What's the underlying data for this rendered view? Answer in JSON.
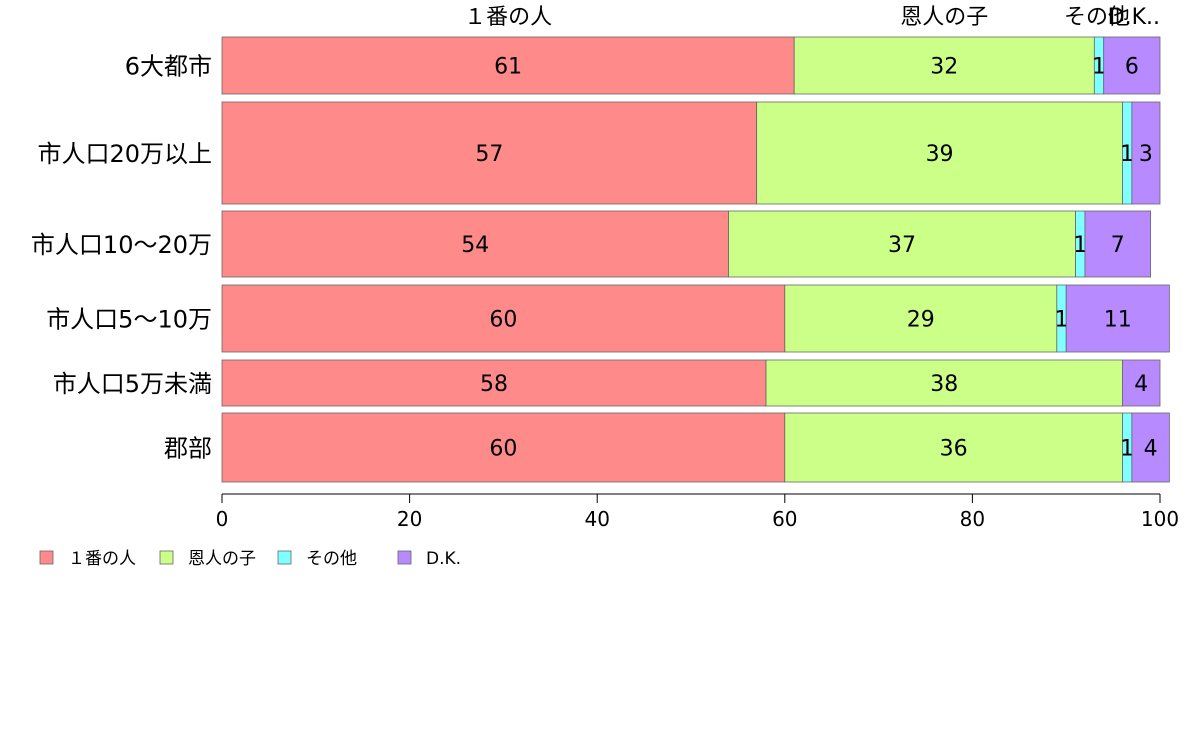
{
  "chart_data": {
    "type": "bar",
    "orientation": "horizontal",
    "stacked": true,
    "categories": [
      "6大都市",
      "市人口20万以上",
      "市人口10〜20万",
      "市人口5〜10万",
      "市人口5万未満",
      "郡部"
    ],
    "series": [
      {
        "name": "１番の人",
        "color": "#FF8A8A",
        "values": [
          61,
          57,
          54,
          60,
          58,
          60
        ]
      },
      {
        "name": "恩人の子",
        "color": "#CCFF88",
        "values": [
          32,
          39,
          37,
          29,
          38,
          36
        ]
      },
      {
        "name": "その他",
        "color": "#7FFFFF",
        "values": [
          1,
          1,
          1,
          1,
          0,
          1
        ]
      },
      {
        "name": "D.K.",
        "color": "#B88AFF",
        "values": [
          6,
          3,
          7,
          11,
          4,
          4
        ]
      }
    ],
    "top_labels": [
      "１番の人",
      "恩人の子",
      "その他",
      "D.K.."
    ],
    "xlim": [
      0,
      100
    ],
    "xticks": [
      0,
      20,
      40,
      60,
      80,
      100
    ],
    "grid": false,
    "legend_position": "bottom-left"
  }
}
